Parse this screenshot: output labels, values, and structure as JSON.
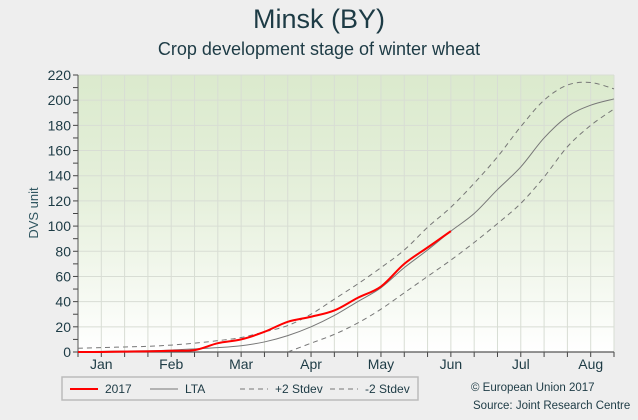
{
  "chart_data": {
    "type": "line",
    "title": "Minsk (BY)",
    "subtitle": "Crop development stage of winter wheat",
    "xlabel": "",
    "ylabel": "DVS unit",
    "ylim": [
      0,
      220
    ],
    "yticks": [
      0,
      20,
      40,
      60,
      80,
      100,
      120,
      140,
      160,
      180,
      200,
      220
    ],
    "x_unit": "dekad index from start of January",
    "xlim": [
      0,
      23
    ],
    "xticks": [
      {
        "x": 1,
        "label": "Jan"
      },
      {
        "x": 4,
        "label": "Feb"
      },
      {
        "x": 7,
        "label": "Mar"
      },
      {
        "x": 10,
        "label": "Apr"
      },
      {
        "x": 13,
        "label": "May"
      },
      {
        "x": 16,
        "label": "Jun"
      },
      {
        "x": 19,
        "label": "Jul"
      },
      {
        "x": 22,
        "label": "Aug"
      }
    ],
    "grid": true,
    "legend_position": "bottom-left",
    "series": [
      {
        "name": "2017",
        "style": "solid",
        "color": "#ff0000",
        "x": [
          0,
          1,
          2,
          3,
          4,
          5,
          6,
          7,
          8,
          9,
          10,
          11,
          12,
          13,
          14,
          15,
          16
        ],
        "values": [
          0,
          0,
          0.3,
          0.5,
          1,
          1.5,
          7,
          10,
          16,
          24,
          28,
          33,
          43,
          52,
          70,
          83,
          96
        ]
      },
      {
        "name": "LTA",
        "style": "solid",
        "color": "#777777",
        "x": [
          0,
          1,
          2,
          3,
          4,
          5,
          6,
          7,
          8,
          9,
          10,
          11,
          12,
          13,
          14,
          15,
          16,
          17,
          18,
          19,
          20,
          21,
          22,
          23
        ],
        "values": [
          0.3,
          0.5,
          0.8,
          1,
          1.5,
          2.5,
          3.5,
          5,
          8,
          13,
          20,
          29,
          40,
          51,
          67,
          81,
          96,
          110,
          129,
          147,
          170,
          187,
          196,
          201
        ]
      },
      {
        "name": "+2 Stdev",
        "style": "dashed",
        "color": "#777777",
        "x": [
          0,
          1,
          2,
          3,
          4,
          5,
          6,
          7,
          8,
          9,
          10,
          11,
          12,
          13,
          14,
          15,
          16,
          17,
          18,
          19,
          20,
          21,
          22,
          23
        ],
        "values": [
          3,
          3.5,
          4,
          4.5,
          5.5,
          7,
          9,
          11.5,
          16,
          21,
          30,
          42,
          54,
          67,
          81,
          99,
          115,
          134,
          155,
          179,
          200,
          212,
          214,
          209
        ]
      },
      {
        "name": "-2 Stdev",
        "style": "dashed",
        "color": "#777777",
        "x": [
          9,
          10,
          11,
          12,
          13,
          14,
          15,
          16,
          17,
          18,
          19,
          20,
          21,
          22,
          23
        ],
        "values": [
          0,
          7,
          14,
          23,
          34,
          47,
          60,
          73,
          87,
          102,
          118,
          139,
          163,
          180,
          193
        ]
      }
    ]
  },
  "credits": {
    "line1": "© European Union 2017",
    "line2": "Source: Joint Research Centre"
  }
}
